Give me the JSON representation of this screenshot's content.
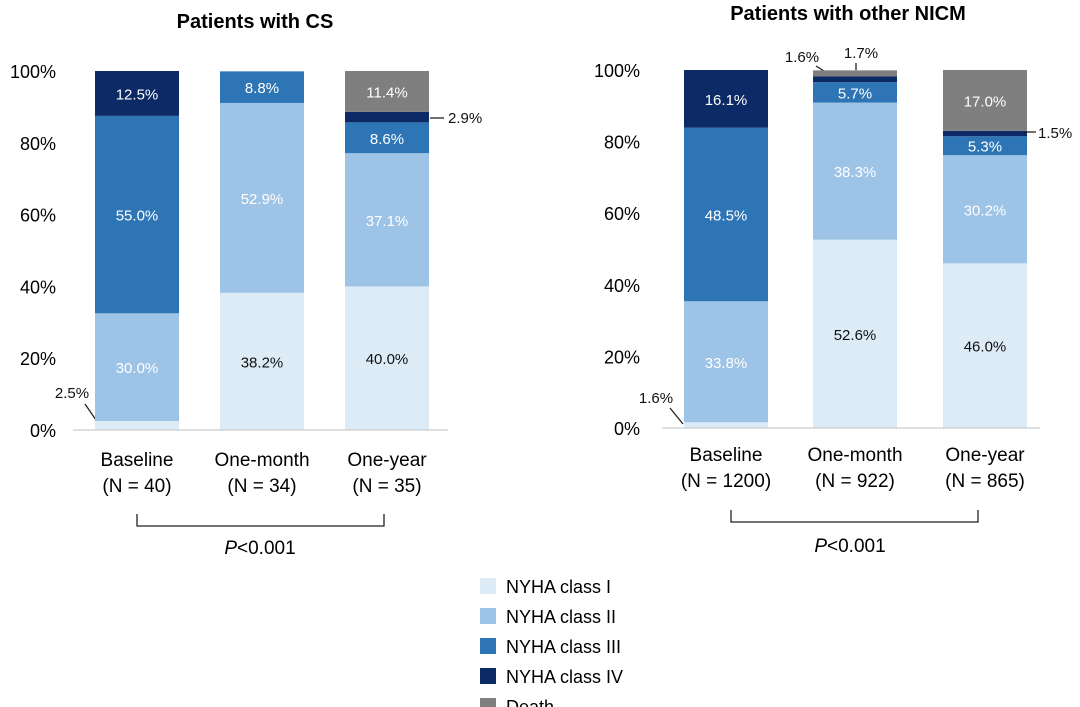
{
  "colors": {
    "NYHA class I": "#ddebf7",
    "NYHA class II": "#9dc3e6",
    "NYHA class III": "#2e75b6",
    "NYHA class IV": "#0b2a66",
    "Death": "#7f7f7f"
  },
  "label_colors": {
    "NYHA class I": "#111111",
    "NYHA class II": "#ffffff",
    "NYHA class III": "#ffffff",
    "NYHA class IV": "#ffffff",
    "Death": "#ffffff"
  },
  "legend": [
    "NYHA class I",
    "NYHA class II",
    "NYHA class III",
    "NYHA class IV",
    "Death"
  ],
  "chart_data": [
    {
      "type": "bar",
      "stacked": true,
      "title": "Patients with CS",
      "categories": [
        "Baseline",
        "One-month",
        "One-year"
      ],
      "category_n": [
        "(N = 40)",
        "(N = 34)",
        "(N = 35)"
      ],
      "ylim": [
        0,
        100
      ],
      "yticks": [
        0,
        20,
        40,
        60,
        80,
        100
      ],
      "ytick_labels": [
        "0%",
        "20%",
        "40%",
        "60%",
        "80%",
        "100%"
      ],
      "series": [
        {
          "name": "NYHA class I",
          "values": [
            2.5,
            38.2,
            40.0
          ],
          "labels": [
            "2.5%",
            "38.2%",
            "40.0%"
          ]
        },
        {
          "name": "NYHA class II",
          "values": [
            30.0,
            52.9,
            37.1
          ],
          "labels": [
            "30.0%",
            "52.9%",
            "37.1%"
          ]
        },
        {
          "name": "NYHA class III",
          "values": [
            55.0,
            8.8,
            8.6
          ],
          "labels": [
            "55.0%",
            "8.8%",
            "8.6%"
          ]
        },
        {
          "name": "NYHA class IV",
          "values": [
            12.5,
            0,
            2.9
          ],
          "labels": [
            "12.5%",
            "",
            "2.9%"
          ]
        },
        {
          "name": "Death",
          "values": [
            0,
            0,
            11.4
          ],
          "labels": [
            "",
            "",
            "11.4%"
          ]
        }
      ],
      "p_value": "<0.001"
    },
    {
      "type": "bar",
      "stacked": true,
      "title": "Patients with other NICM",
      "categories": [
        "Baseline",
        "One-month",
        "One-year"
      ],
      "category_n": [
        "(N = 1200)",
        "(N = 922)",
        "(N = 865)"
      ],
      "ylim": [
        0,
        100
      ],
      "yticks": [
        0,
        20,
        40,
        60,
        80,
        100
      ],
      "ytick_labels": [
        "0%",
        "20%",
        "40%",
        "60%",
        "80%",
        "100%"
      ],
      "series": [
        {
          "name": "NYHA class I",
          "values": [
            1.6,
            52.6,
            46.0
          ],
          "labels": [
            "1.6%",
            "52.6%",
            "46.0%"
          ]
        },
        {
          "name": "NYHA class II",
          "values": [
            33.8,
            38.3,
            30.2
          ],
          "labels": [
            "33.8%",
            "38.3%",
            "30.2%"
          ]
        },
        {
          "name": "NYHA class III",
          "values": [
            48.5,
            5.7,
            5.3
          ],
          "labels": [
            "48.5%",
            "5.7%",
            "5.3%"
          ]
        },
        {
          "name": "NYHA class IV",
          "values": [
            16.1,
            1.6,
            1.5
          ],
          "labels": [
            "16.1%",
            "1.6%",
            "1.5%"
          ]
        },
        {
          "name": "Death",
          "values": [
            0,
            1.7,
            17.0
          ],
          "labels": [
            "",
            "1.7%",
            "17.0%"
          ]
        }
      ],
      "p_value": "<0.001"
    }
  ]
}
